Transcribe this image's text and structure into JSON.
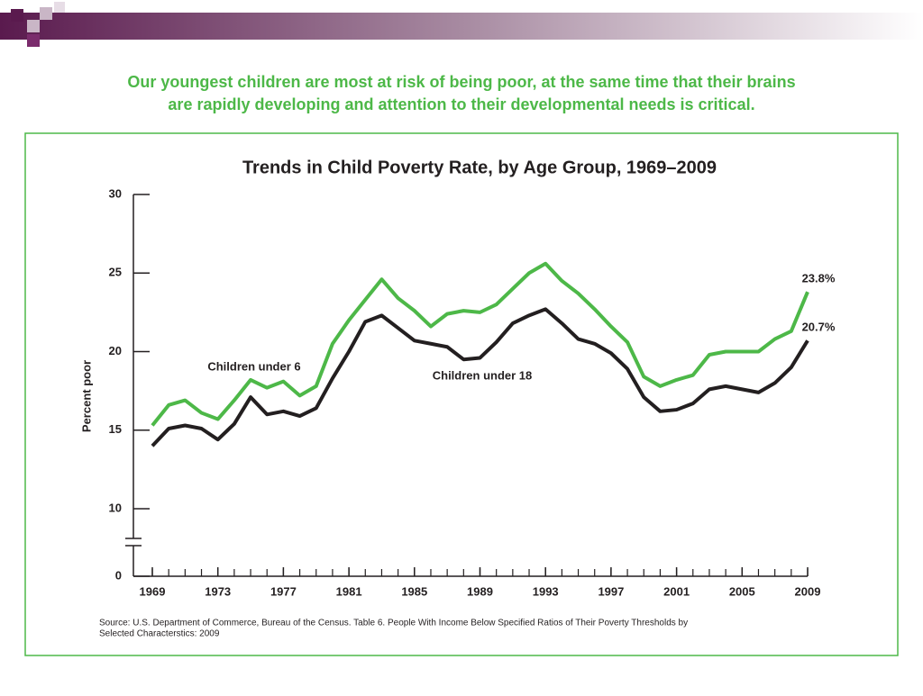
{
  "slide": {
    "headline": [
      "Our youngest children are most at risk of being poor, at the same time that their brains",
      "are rapidly developing and attention to their developmental needs is critical."
    ]
  },
  "chart_data": {
    "type": "line",
    "title": "Trends in Child Poverty Rate, by Age Group, 1969–2009",
    "y_label": "Percent poor",
    "source": [
      "Source: U.S. Department of Commerce, Bureau of the Census. Table 6. People With Income Below Specified Ratios of Their Poverty Thresholds by",
      "Selected Characterstics: 2009"
    ],
    "x": [
      1969,
      1970,
      1971,
      1972,
      1973,
      1974,
      1975,
      1976,
      1977,
      1978,
      1979,
      1980,
      1981,
      1982,
      1983,
      1984,
      1985,
      1986,
      1987,
      1988,
      1989,
      1990,
      1991,
      1992,
      1993,
      1994,
      1995,
      1996,
      1997,
      1998,
      1999,
      2000,
      2001,
      2002,
      2003,
      2004,
      2005,
      2006,
      2007,
      2008,
      2009
    ],
    "xlim": [
      1969,
      2009
    ],
    "xticks": [
      1969,
      1973,
      1977,
      1981,
      1985,
      1989,
      1993,
      1997,
      2001,
      2005,
      2009
    ],
    "ylim": [
      0,
      30
    ],
    "y_axis_break": [
      0,
      10
    ],
    "yticks": [
      0,
      10,
      15,
      20,
      25,
      30
    ],
    "series": [
      {
        "name": "Children under 6",
        "color": "#4db848",
        "values": [
          15.3,
          16.6,
          16.9,
          16.1,
          15.7,
          16.9,
          18.2,
          17.7,
          18.1,
          17.2,
          17.8,
          20.5,
          22.0,
          23.3,
          24.6,
          23.4,
          22.6,
          21.6,
          22.4,
          22.6,
          22.5,
          23.0,
          24.0,
          25.0,
          25.6,
          24.5,
          23.7,
          22.7,
          21.6,
          20.6,
          18.4,
          17.8,
          18.2,
          18.5,
          19.8,
          20.0,
          20.0,
          20.0,
          20.8,
          21.3,
          23.8
        ],
        "value_labels": [
          null,
          null,
          null,
          null,
          null,
          null,
          null,
          null,
          null,
          null,
          null,
          null,
          null,
          null,
          null,
          null,
          null,
          null,
          null,
          null,
          null,
          null,
          null,
          null,
          null,
          null,
          null,
          null,
          null,
          null,
          null,
          null,
          null,
          null,
          null,
          null,
          null,
          null,
          null,
          null,
          "23.8%"
        ]
      },
      {
        "name": "Children under 18",
        "color": "#231f20",
        "values": [
          14.0,
          15.1,
          15.3,
          15.1,
          14.4,
          15.4,
          17.1,
          16.0,
          16.2,
          15.9,
          16.4,
          18.3,
          20.0,
          21.9,
          22.3,
          21.5,
          20.7,
          20.5,
          20.3,
          19.5,
          19.6,
          20.6,
          21.8,
          22.3,
          22.7,
          21.8,
          20.8,
          20.5,
          19.9,
          18.9,
          17.1,
          16.2,
          16.3,
          16.7,
          17.6,
          17.8,
          17.6,
          17.4,
          18.0,
          19.0,
          20.7
        ],
        "value_labels": [
          null,
          null,
          null,
          null,
          null,
          null,
          null,
          null,
          null,
          null,
          null,
          null,
          null,
          null,
          null,
          null,
          null,
          null,
          null,
          null,
          null,
          null,
          null,
          null,
          null,
          null,
          null,
          null,
          null,
          null,
          null,
          null,
          null,
          null,
          null,
          null,
          null,
          null,
          null,
          null,
          "20.7%"
        ]
      }
    ]
  }
}
